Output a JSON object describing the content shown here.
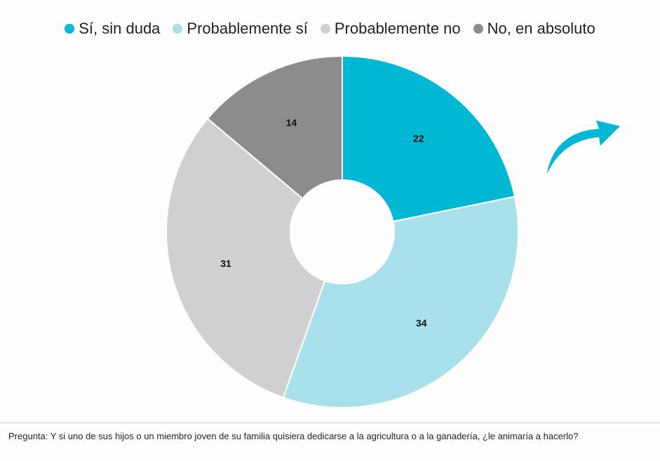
{
  "chart_data": {
    "type": "pie",
    "donut": true,
    "title": "",
    "categories": [
      "Sí, sin duda",
      "Probablemente sí",
      "Probablemente no",
      "No, en absoluto"
    ],
    "values": [
      22,
      34,
      31,
      14
    ],
    "colors": [
      "#00b8d4",
      "#a8e0ec",
      "#d0d0d0",
      "#8c8c8c"
    ],
    "legend_position": "top"
  },
  "legend": [
    {
      "label": "Sí, sin duda",
      "color": "#00b8d4"
    },
    {
      "label": "Probablemente sí",
      "color": "#a8e0ec"
    },
    {
      "label": "Probablemente no",
      "color": "#d0d0d0"
    },
    {
      "label": "No, en absoluto",
      "color": "#8c8c8c"
    }
  ],
  "footnote": "Pregunta: Y si uno de sus hijos o un miembro joven de su familia quisiera dedicarse a la agricultura o a la ganadería, ¿le animaría a hacerlo?",
  "arrow_icon": "curved-arrow-icon",
  "arrow_color": "#00b8d4"
}
